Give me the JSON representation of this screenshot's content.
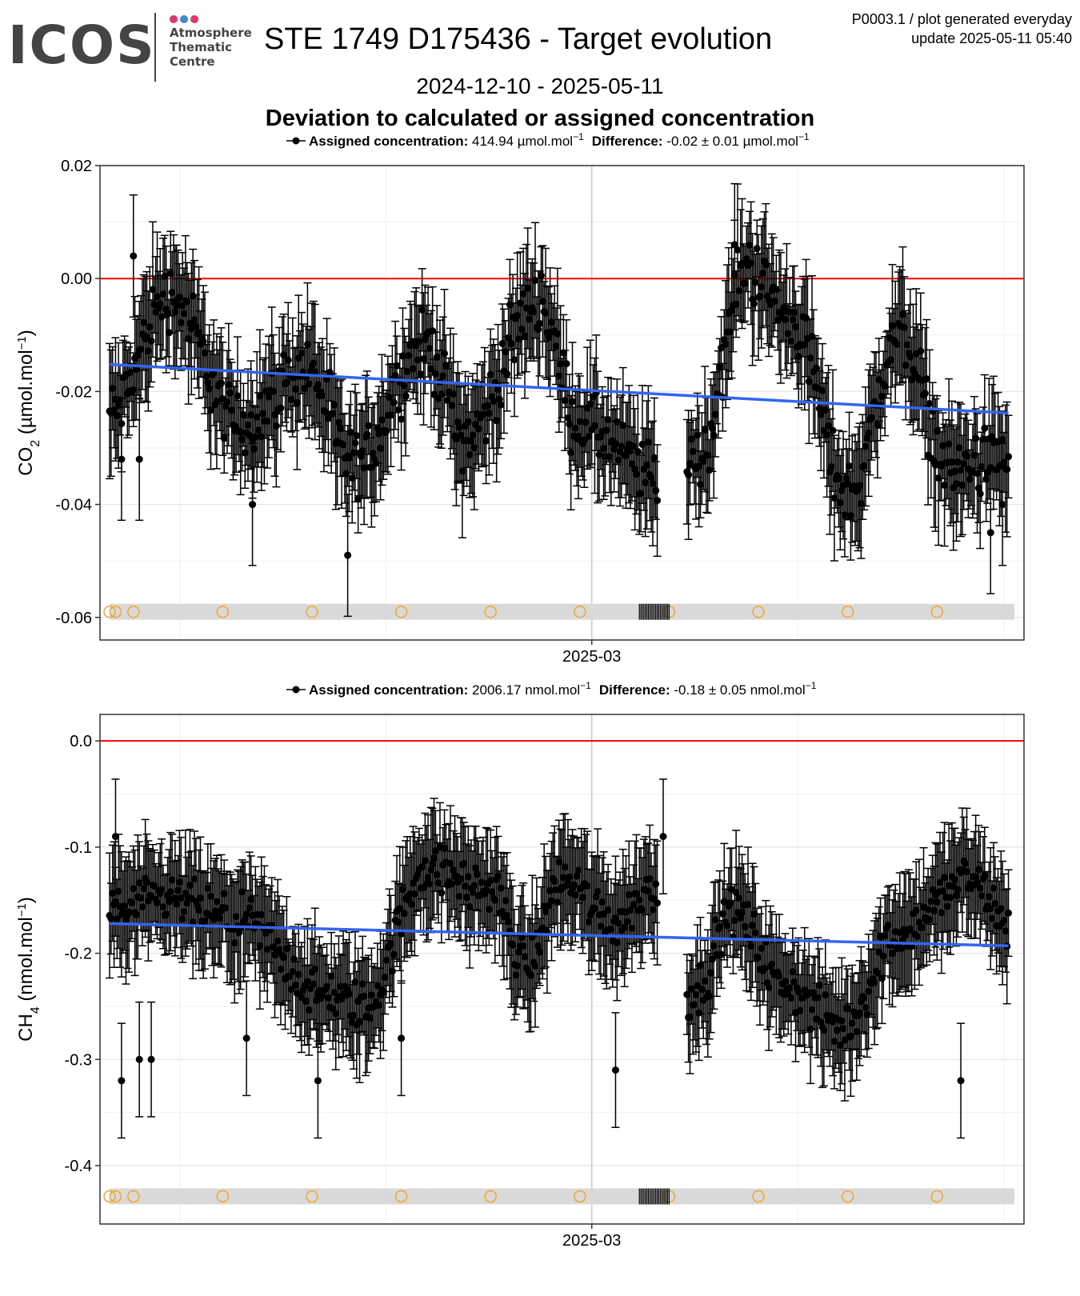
{
  "logo": {
    "wordmark": "ICOS",
    "line1": "Atmosphere",
    "line2": "Thematic",
    "line3": "Centre",
    "dot_colors": [
      "#e5326e",
      "#3a8ccf",
      "#e5326e"
    ]
  },
  "header": {
    "title": "STE 1749 D175436 - Target evolution",
    "plot_id": "P0003.1 / plot generated everyday",
    "update": "update  2025-05-11 05:40",
    "date_range": "2024-12-10 - 2025-05-11",
    "subtitle": "Deviation to calculated or assigned concentration"
  },
  "colors": {
    "points": "#000000",
    "reference_line": "#ff0000",
    "trend_line": "#3366ee",
    "event_circles": "#f5a623",
    "event_band": "#d9d9d9",
    "grid": "#e6e6e6"
  },
  "chart_data": [
    {
      "type": "scatter",
      "gas": "CO2",
      "legend": {
        "label_bold": "Assigned concentration:",
        "assigned_value": "414.94 µmol.mol",
        "diff_bold": "Difference:",
        "diff_value": "-0.02 ± 0.01 µmol.mol",
        "unit_sup": "−1"
      },
      "ylabel_main": "CO",
      "ylabel_sub": "2",
      "ylabel_unit": " (µmol.mol",
      "ylabel_sup": "−1",
      "ylabel_close": ")",
      "ylim": [
        -0.064,
        0.02
      ],
      "yticks": [
        0.02,
        0.0,
        -0.02,
        -0.04,
        -0.06
      ],
      "ytick_labels": [
        "0.02",
        "0.00",
        "-0.02",
        "-0.04",
        "-0.06"
      ],
      "xlim": [
        "2024-12-10",
        "2025-05-11"
      ],
      "xticks": [
        "2025-03-01"
      ],
      "xtick_labels": [
        "2025-03"
      ],
      "reference_y": 0.0,
      "trend": {
        "x": [
          "2024-12-10",
          "2025-05-10"
        ],
        "y": [
          -0.0152,
          -0.0238
        ]
      },
      "series_pattern": {
        "start": "2024-12-10",
        "end": "2025-05-10",
        "gap": [
          "2025-03-12",
          "2025-03-17"
        ],
        "waves": [
          [
            "2024-12-10",
            -0.024
          ],
          [
            "2024-12-20",
            -0.003
          ],
          [
            "2025-01-01",
            -0.026
          ],
          [
            "2025-01-12",
            -0.016
          ],
          [
            "2025-01-20",
            -0.033
          ],
          [
            "2025-02-01",
            -0.012
          ],
          [
            "2025-02-08",
            -0.028
          ],
          [
            "2025-02-20",
            -0.004
          ],
          [
            "2025-02-27",
            -0.026
          ],
          [
            "2025-03-12",
            -0.035
          ],
          [
            "2025-03-19",
            -0.032
          ],
          [
            "2025-03-27",
            0.002
          ],
          [
            "2025-04-04",
            -0.008
          ],
          [
            "2025-04-13",
            -0.038
          ],
          [
            "2025-04-22",
            -0.01
          ],
          [
            "2025-04-30",
            -0.034
          ],
          [
            "2025-05-10",
            -0.032
          ]
        ],
        "noise": 0.009,
        "err": [
          0.005,
          0.012
        ]
      },
      "highlight_points": [
        [
          "2024-12-12",
          -0.032
        ],
        [
          "2024-12-14",
          0.004
        ],
        [
          "2024-12-15",
          -0.032
        ],
        [
          "2025-01-03",
          -0.04
        ],
        [
          "2025-01-19",
          -0.049
        ],
        [
          "2025-03-25",
          0.006
        ],
        [
          "2025-05-07",
          -0.045
        ],
        [
          "2025-05-09",
          -0.04
        ]
      ],
      "event_band_y": -0.059,
      "event_circles": [
        "2024-12-10",
        "2024-12-11",
        "2024-12-14",
        "2024-12-29",
        "2025-01-13",
        "2025-01-28",
        "2025-02-12",
        "2025-02-27",
        "2025-03-14",
        "2025-03-29",
        "2025-04-13",
        "2025-04-28"
      ],
      "event_ticks_range": [
        "2025-03-09",
        "2025-03-14"
      ]
    },
    {
      "type": "scatter",
      "gas": "CH4",
      "legend": {
        "label_bold": "Assigned concentration:",
        "assigned_value": "2006.17 nmol.mol",
        "diff_bold": "Difference:",
        "diff_value": "-0.18 ± 0.05 nmol.mol",
        "unit_sup": "−1"
      },
      "ylabel_main": "CH",
      "ylabel_sub": "4",
      "ylabel_unit": " (nmol.mol",
      "ylabel_sup": "−1",
      "ylabel_close": ")",
      "ylim": [
        -0.455,
        0.025
      ],
      "yticks": [
        0.0,
        -0.1,
        -0.2,
        -0.3,
        -0.4
      ],
      "ytick_labels": [
        "0.0",
        "-0.1",
        "-0.2",
        "-0.3",
        "-0.4"
      ],
      "xlim": [
        "2024-12-10",
        "2025-05-11"
      ],
      "xticks": [
        "2025-03-01"
      ],
      "xtick_labels": [
        "2025-03"
      ],
      "reference_y": 0.0,
      "trend": {
        "x": [
          "2024-12-10",
          "2025-05-10"
        ],
        "y": [
          -0.172,
          -0.193
        ]
      },
      "series_pattern": {
        "start": "2024-12-10",
        "end": "2025-05-10",
        "gap": [
          "2025-03-12",
          "2025-03-17"
        ],
        "waves": [
          [
            "2024-12-10",
            -0.16
          ],
          [
            "2024-12-20",
            -0.15
          ],
          [
            "2025-01-01",
            -0.17
          ],
          [
            "2025-01-15",
            -0.24
          ],
          [
            "2025-01-22",
            -0.25
          ],
          [
            "2025-02-01",
            -0.12
          ],
          [
            "2025-02-12",
            -0.14
          ],
          [
            "2025-02-18",
            -0.21
          ],
          [
            "2025-02-24",
            -0.13
          ],
          [
            "2025-03-05",
            -0.17
          ],
          [
            "2025-03-11",
            -0.14
          ],
          [
            "2025-03-18",
            -0.24
          ],
          [
            "2025-03-25",
            -0.16
          ],
          [
            "2025-04-02",
            -0.23
          ],
          [
            "2025-04-12",
            -0.27
          ],
          [
            "2025-04-22",
            -0.18
          ],
          [
            "2025-05-03",
            -0.13
          ],
          [
            "2025-05-10",
            -0.17
          ]
        ],
        "noise": 0.035,
        "err": [
          0.03,
          0.06
        ]
      },
      "highlight_points": [
        [
          "2024-12-11",
          -0.09
        ],
        [
          "2024-12-12",
          -0.32
        ],
        [
          "2024-12-15",
          -0.3
        ],
        [
          "2024-12-17",
          -0.3
        ],
        [
          "2025-01-02",
          -0.28
        ],
        [
          "2025-01-14",
          -0.32
        ],
        [
          "2025-01-28",
          -0.28
        ],
        [
          "2025-03-05",
          -0.31
        ],
        [
          "2025-03-13",
          -0.09
        ],
        [
          "2025-05-02",
          -0.32
        ]
      ],
      "event_band_y": -0.429,
      "event_circles": [
        "2024-12-10",
        "2024-12-11",
        "2024-12-14",
        "2024-12-29",
        "2025-01-13",
        "2025-01-28",
        "2025-02-12",
        "2025-02-27",
        "2025-03-14",
        "2025-03-29",
        "2025-04-13",
        "2025-04-28"
      ],
      "event_ticks_range": [
        "2025-03-09",
        "2025-03-14"
      ]
    }
  ]
}
